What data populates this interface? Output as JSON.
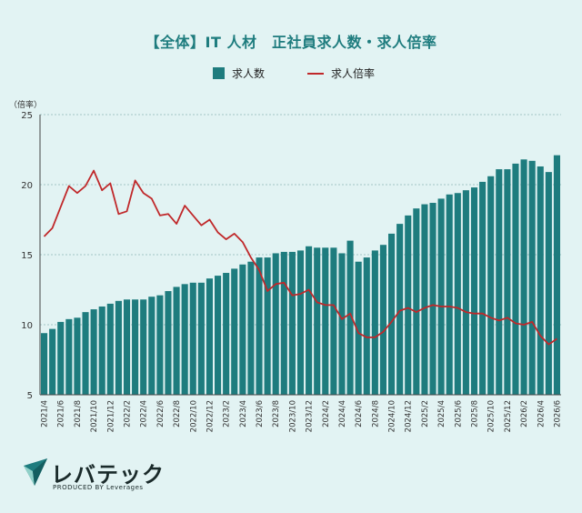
{
  "title": "【全体】IT 人材　正社員求人数・求人倍率",
  "brand": {
    "name": "レバテック",
    "sub": "PRODUCED BY Leverages",
    "logo_icon": "leveretech-logo-icon"
  },
  "colors": {
    "background": "#e2f3f3",
    "bar": "#1e7c7e",
    "line": "#c0282a",
    "grid": "#8fb5b5",
    "title": "#1e7c7e"
  },
  "chart_data": {
    "type": "bar",
    "title": "【全体】IT 人材　正社員求人数・求人倍率",
    "ylabel": "（倍率）",
    "ylim": [
      5,
      25
    ],
    "yticks": [
      5,
      10,
      15,
      20,
      25
    ],
    "grid": true,
    "legend_position": "top",
    "categories": [
      "2021/4",
      "2021/5",
      "2021/6",
      "2021/7",
      "2021/8",
      "2021/9",
      "2021/10",
      "2021/11",
      "2021/12",
      "2022/1",
      "2022/2",
      "2022/3",
      "2022/4",
      "2022/5",
      "2022/6",
      "2022/7",
      "2022/8",
      "2022/9",
      "2022/10",
      "2022/11",
      "2022/12",
      "2023/1",
      "2023/2",
      "2023/3",
      "2023/4",
      "2023/5",
      "2023/6",
      "2023/7",
      "2023/8",
      "2023/9",
      "2023/10",
      "2023/11",
      "2023/12",
      "2024/1",
      "2024/2",
      "2024/3",
      "2024/4",
      "2024/5",
      "2024/6",
      "2024/7",
      "2024/8",
      "2024/9",
      "2024/10",
      "2024/11",
      "2024/12",
      "2025/1",
      "2025/2",
      "2025/3",
      "2025/4",
      "2025/5",
      "2025/6",
      "2025/7",
      "2025/8",
      "2025/9",
      "2025/10",
      "2025/11",
      "2025/12",
      "2026/1",
      "2026/2",
      "2026/3",
      "2026/4",
      "2026/5",
      "2026/6"
    ],
    "xtick_labels": [
      "2021/4",
      "",
      "2021/6",
      "",
      "2021/8",
      "",
      "2021/10",
      "",
      "2021/12",
      "",
      "2022/2",
      "",
      "2022/4",
      "",
      "2022/6",
      "",
      "2022/8",
      "",
      "2022/10",
      "",
      "2022/12",
      "",
      "2023/2",
      "",
      "2023/4",
      "",
      "2023/6",
      "",
      "2023/8",
      "",
      "2023/10",
      "",
      "2023/12",
      "",
      "2024/2",
      "",
      "2024/4",
      "",
      "2024/6",
      "",
      "2024/8",
      "",
      "2024/10",
      "",
      "2024/12",
      "",
      "2025/2",
      "",
      "2025/4",
      "",
      "2025/6",
      "",
      "2025/8",
      "",
      "2025/10",
      "",
      "2025/12",
      "",
      "2026/2",
      "",
      "2026/4",
      "",
      "2026/6"
    ],
    "series": [
      {
        "name": "求人数",
        "type": "bar",
        "values": [
          9.4,
          9.7,
          10.2,
          10.4,
          10.5,
          10.9,
          11.1,
          11.3,
          11.5,
          11.7,
          11.8,
          11.8,
          11.8,
          12.0,
          12.1,
          12.4,
          12.7,
          12.9,
          13.0,
          13.0,
          13.3,
          13.5,
          13.7,
          14.0,
          14.3,
          14.5,
          14.8,
          14.8,
          15.1,
          15.2,
          15.2,
          15.3,
          15.6,
          15.5,
          15.5,
          15.5,
          15.1,
          16.0,
          14.5,
          14.8,
          15.3,
          15.7,
          16.5,
          17.2,
          17.8,
          18.3,
          18.6,
          18.7,
          19.0,
          19.3,
          19.4,
          19.6,
          19.8,
          20.2,
          20.6,
          21.1,
          21.1,
          21.5,
          21.8,
          21.7,
          21.3,
          20.9,
          22.1
        ]
      },
      {
        "name": "求人倍率",
        "type": "line",
        "values": [
          16.3,
          16.9,
          18.4,
          19.9,
          19.4,
          19.9,
          21.0,
          19.6,
          20.1,
          17.9,
          18.1,
          20.3,
          19.4,
          19.0,
          17.8,
          17.9,
          17.2,
          18.5,
          17.8,
          17.1,
          17.5,
          16.6,
          16.1,
          16.5,
          15.9,
          14.8,
          13.9,
          12.4,
          12.9,
          13.0,
          12.1,
          12.2,
          12.5,
          11.6,
          11.4,
          11.4,
          10.4,
          10.8,
          9.4,
          9.1,
          9.1,
          9.5,
          10.2,
          11.0,
          11.2,
          10.9,
          11.2,
          11.4,
          11.3,
          11.3,
          11.2,
          10.9,
          10.8,
          10.8,
          10.5,
          10.3,
          10.5,
          10.1,
          10.0,
          10.2,
          9.2,
          8.6,
          9.0
        ]
      }
    ]
  }
}
